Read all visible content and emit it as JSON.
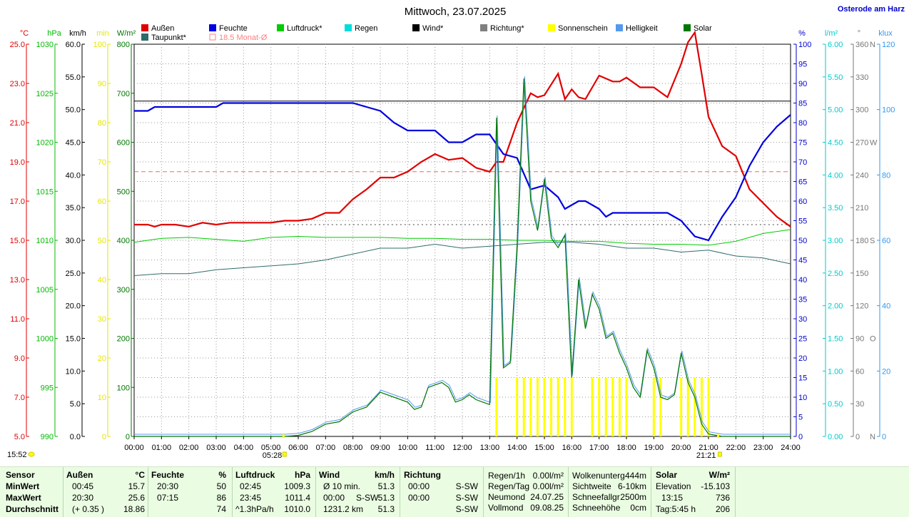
{
  "title": "Mittwoch, 23.07.2025",
  "location": "Osterode am Harz",
  "legend": [
    {
      "label": "Außen",
      "color": "#e00000"
    },
    {
      "label": "Taupunkt*",
      "color": "#2f6b6b"
    },
    {
      "label": "Feuchte",
      "color": "#0000e0"
    },
    {
      "label": "18.5 Monat-Ø",
      "color": "#ff8080"
    },
    {
      "label": "Luftdruck*",
      "color": "#00cc00"
    },
    {
      "label": "Regen",
      "color": "#00dddd"
    },
    {
      "label": "Wind*",
      "color": "#000000"
    },
    {
      "label": "Richtung*",
      "color": "#808080"
    },
    {
      "label": "Sonnenschein",
      "color": "#ffff00"
    },
    {
      "label": "Helligkeit",
      "color": "#5599ee"
    },
    {
      "label": "Solar",
      "color": "#007700"
    }
  ],
  "axes_left": [
    {
      "unit": "°C",
      "color": "#e00000",
      "ticks": [
        "25.0",
        "23.0",
        "21.0",
        "19.0",
        "17.0",
        "15.0",
        "13.0",
        "11.0",
        "9.0",
        "7.0",
        "5.0"
      ]
    },
    {
      "unit": "hPa",
      "color": "#00bb00",
      "ticks": [
        "1030",
        "1025",
        "1020",
        "1015",
        "1010",
        "1005",
        "1000",
        "995",
        "990"
      ]
    },
    {
      "unit": "km/h",
      "color": "#000000",
      "ticks": [
        "60.0",
        "55.0",
        "50.0",
        "45.0",
        "40.0",
        "35.0",
        "30.0",
        "25.0",
        "20.0",
        "15.0",
        "10.0",
        "5.0",
        "0.0"
      ]
    },
    {
      "unit": "min",
      "color": "#e6e600",
      "ticks": [
        "100",
        "90",
        "80",
        "70",
        "60",
        "50",
        "40",
        "30",
        "20",
        "10",
        "0"
      ]
    },
    {
      "unit": "W/m²",
      "color": "#007700",
      "ticks": [
        "800",
        "700",
        "600",
        "500",
        "400",
        "300",
        "200",
        "100",
        "0"
      ]
    }
  ],
  "axes_right": [
    {
      "unit": "%",
      "color": "#0000cc",
      "ticks": [
        "100",
        "95",
        "90",
        "85",
        "80",
        "75",
        "70",
        "65",
        "60",
        "55",
        "50",
        "45",
        "40",
        "35",
        "30",
        "25",
        "20",
        "15",
        "10",
        "5",
        "0"
      ]
    },
    {
      "unit": "l/m²",
      "color": "#00cccc",
      "ticks": [
        "6.00",
        "5.50",
        "5.00",
        "4.50",
        "4.00",
        "3.50",
        "3.00",
        "2.50",
        "2.00",
        "1.50",
        "1.00",
        "0.50",
        "0.00"
      ]
    },
    {
      "unit": "°",
      "color": "#777777",
      "ticks": [
        "360",
        "330",
        "300",
        "270",
        "240",
        "210",
        "180",
        "150",
        "120",
        "90",
        "60",
        "30",
        "0"
      ],
      "dirs": [
        "N",
        "",
        "",
        "W",
        "",
        "",
        "S",
        "",
        "",
        "O",
        "",
        "",
        "N"
      ]
    },
    {
      "unit": "klux",
      "color": "#3399ee",
      "ticks": [
        "120",
        "100",
        "80",
        "60",
        "40",
        "20",
        "0"
      ]
    }
  ],
  "sunrise": "05:28",
  "sunset": "21:21",
  "clock": "15:52",
  "chart_data": {
    "type": "line",
    "x_unit": "Uhrzeit",
    "x_ticks": [
      "00:00",
      "01:00",
      "02:00",
      "03:00",
      "04:00",
      "05:00",
      "06:00",
      "07:00",
      "08:00",
      "09:00",
      "10:00",
      "11:00",
      "12:00",
      "13:00",
      "14:00",
      "15:00",
      "16:00",
      "17:00",
      "18:00",
      "19:00",
      "20:00",
      "21:00",
      "22:00",
      "23:00",
      "24:00"
    ],
    "xlim": [
      0,
      24
    ],
    "monthly_mean_temp": 18.5,
    "wind_constant_kmh": 51.3,
    "series": [
      {
        "name": "Außen",
        "unit": "°C",
        "ylim": [
          5,
          25
        ],
        "x": [
          0,
          0.5,
          0.75,
          1,
          1.5,
          2,
          2.5,
          3,
          3.5,
          4,
          5,
          5.5,
          6,
          6.5,
          7,
          7.5,
          8,
          8.5,
          9,
          9.5,
          10,
          10.5,
          11,
          11.5,
          12,
          12.5,
          13,
          13.25,
          13.5,
          14,
          14.5,
          14.75,
          15,
          15.5,
          15.75,
          16,
          16.25,
          16.5,
          16.75,
          17,
          17.5,
          17.75,
          18,
          18.5,
          19,
          19.5,
          20,
          20.25,
          20.5,
          20.75,
          21,
          21.5,
          22,
          22.5,
          23,
          23.5,
          24
        ],
        "values": [
          15.8,
          15.8,
          15.7,
          15.8,
          15.8,
          15.7,
          15.9,
          15.8,
          15.9,
          15.9,
          15.9,
          16.0,
          16.0,
          16.1,
          16.4,
          16.4,
          17.1,
          17.6,
          18.2,
          18.2,
          18.5,
          19.0,
          19.4,
          19.1,
          19.2,
          18.7,
          18.5,
          19.0,
          19.0,
          21.0,
          22.5,
          22.3,
          22.4,
          23.5,
          22.2,
          22.7,
          22.3,
          22.2,
          22.8,
          23.4,
          23.1,
          23.1,
          23.3,
          22.8,
          22.8,
          22.3,
          24.0,
          25.1,
          25.6,
          23.5,
          21.3,
          19.8,
          19.3,
          17.6,
          16.9,
          16.2,
          15.7
        ]
      },
      {
        "name": "Taupunkt*",
        "unit": "°C",
        "ylim": [
          5,
          25
        ],
        "x": [
          0,
          1,
          2,
          3,
          4,
          5,
          6,
          7,
          8,
          9,
          10,
          11,
          12,
          13,
          14,
          15,
          16,
          17,
          18,
          19,
          20,
          21,
          22,
          23,
          24
        ],
        "values": [
          13.2,
          13.3,
          13.3,
          13.5,
          13.6,
          13.7,
          13.8,
          14.0,
          14.3,
          14.6,
          14.6,
          14.8,
          14.6,
          14.7,
          14.8,
          14.9,
          14.9,
          14.8,
          14.6,
          14.6,
          14.4,
          14.5,
          14.2,
          14.1,
          13.8
        ]
      },
      {
        "name": "Feuchte",
        "unit": "%",
        "ylim": [
          0,
          100
        ],
        "x": [
          0,
          0.5,
          0.75,
          1,
          1.5,
          2,
          2.5,
          3,
          3.25,
          3.5,
          4,
          5,
          6,
          6.5,
          7,
          7.25,
          7.5,
          8,
          8.5,
          9,
          9.5,
          10,
          10.5,
          11,
          11.5,
          12,
          12.5,
          13,
          13.5,
          14,
          14.5,
          15,
          15.5,
          15.75,
          16,
          16.25,
          16.5,
          16.75,
          17,
          17.25,
          17.5,
          18,
          18.5,
          19,
          19.5,
          20,
          20.5,
          21,
          21.5,
          22,
          22.5,
          23,
          23.5,
          24
        ],
        "values": [
          83,
          83,
          84,
          84,
          84,
          84,
          84,
          84,
          85,
          85,
          85,
          85,
          85,
          85,
          85,
          85,
          85,
          85,
          84,
          83,
          80,
          78,
          78,
          78,
          75,
          75,
          77,
          77,
          72,
          71,
          63,
          64,
          61,
          58,
          59,
          60,
          60,
          59,
          58,
          56,
          57,
          57,
          57,
          57,
          57,
          55,
          51,
          50,
          56,
          61,
          69,
          75,
          79,
          82
        ]
      },
      {
        "name": "Luftdruck*",
        "unit": "hPa",
        "ylim": [
          990,
          1030
        ],
        "x": [
          0,
          1,
          2,
          3,
          4,
          5,
          6,
          7,
          8,
          9,
          10,
          11,
          12,
          13,
          14,
          15,
          16,
          17,
          18,
          19,
          20,
          21,
          22,
          23,
          24
        ],
        "values": [
          1009.8,
          1010.2,
          1010.3,
          1010.1,
          1009.9,
          1010.3,
          1010.4,
          1010.3,
          1010.3,
          1010.3,
          1010.2,
          1010.2,
          1010.1,
          1010.1,
          1010.0,
          1010.0,
          1009.9,
          1009.9,
          1009.7,
          1009.6,
          1009.6,
          1009.5,
          1009.9,
          1010.7,
          1011.1
        ]
      },
      {
        "name": "Solar",
        "unit": "W/m²",
        "ylim": [
          0,
          800
        ],
        "x": [
          0,
          5.5,
          6,
          6.5,
          7,
          7.5,
          8,
          8.5,
          9,
          9.5,
          10,
          10.25,
          10.5,
          10.75,
          11,
          11.25,
          11.5,
          11.75,
          12,
          12.25,
          12.5,
          12.75,
          13,
          13.25,
          13.5,
          13.75,
          14,
          14.25,
          14.5,
          14.75,
          15,
          15.25,
          15.5,
          15.75,
          16,
          16.25,
          16.5,
          16.75,
          17,
          17.25,
          17.5,
          17.75,
          18,
          18.25,
          18.5,
          18.75,
          19,
          19.25,
          19.5,
          19.75,
          20,
          20.25,
          20.5,
          20.75,
          21,
          21.5,
          22,
          24
        ],
        "values": [
          0,
          0,
          2,
          10,
          25,
          30,
          50,
          60,
          90,
          80,
          70,
          55,
          60,
          100,
          105,
          110,
          100,
          70,
          75,
          85,
          75,
          70,
          65,
          650,
          140,
          150,
          390,
          730,
          480,
          420,
          525,
          405,
          385,
          410,
          120,
          320,
          220,
          290,
          260,
          200,
          210,
          170,
          140,
          100,
          80,
          175,
          140,
          80,
          75,
          85,
          170,
          110,
          80,
          25,
          5,
          0,
          0,
          0
        ]
      }
    ],
    "sunshine_bars_h": [
      13.25,
      14.0,
      14.25,
      14.5,
      14.75,
      15.0,
      15.25,
      15.5,
      15.75,
      16.0,
      16.25,
      16.5,
      16.75,
      17.0,
      17.25,
      17.5,
      17.75,
      18.0,
      18.25,
      18.5,
      18.75,
      19.0,
      19.25,
      19.5,
      19.75,
      20.0,
      20.25,
      20.5,
      20.75,
      21.0,
      21.25
    ],
    "sunshine_on": [
      1,
      1,
      1,
      1,
      1,
      1,
      1,
      1,
      1,
      1,
      0,
      0,
      1,
      1,
      1,
      1,
      1,
      1,
      0,
      0,
      0,
      1,
      1,
      0,
      0,
      1,
      1,
      1,
      1,
      1,
      0
    ]
  },
  "stats": {
    "sensor": {
      "h": "Sensor",
      "rows": [
        "MinWert",
        "MaxWert",
        "Durchschnitt"
      ]
    },
    "aussen": {
      "h": "Außen",
      "unit": "°C",
      "rows": [
        [
          "00:45",
          "15.7"
        ],
        [
          "20:30",
          "25.6"
        ],
        [
          "(+ 0.35 )",
          "18.86"
        ]
      ]
    },
    "feuchte": {
      "h": "Feuchte",
      "unit": "%",
      "rows": [
        [
          "20:30",
          "50"
        ],
        [
          "07:15",
          "86"
        ],
        [
          "",
          "74"
        ]
      ]
    },
    "luftdruck": {
      "h": "Luftdruck",
      "unit": "hPa",
      "rows": [
        [
          "02:45",
          "1009.3"
        ],
        [
          "23:45",
          "1011.4"
        ],
        [
          "^1.3hPa/h",
          "1010.0"
        ]
      ]
    },
    "wind": {
      "h": "Wind",
      "unit": "km/h",
      "rows": [
        [
          "Ø 10 min.",
          "",
          "51.3"
        ],
        [
          "00:00",
          "S-SW",
          "51.3"
        ],
        [
          "1231.2 km",
          "",
          "51.3"
        ]
      ]
    },
    "richtung": {
      "h": "Richtung",
      "rows": [
        [
          "00:00",
          "S-SW"
        ],
        [
          "00:00",
          "S-SW"
        ],
        [
          "",
          "S-SW"
        ]
      ]
    },
    "regen": {
      "rows": [
        [
          "Regen/1h",
          "0.00l/m²"
        ],
        [
          "Regen/Tag",
          "0.00l/m²"
        ],
        [
          "Neumond",
          "24.07.25"
        ],
        [
          "Vollmond",
          "09.08.25"
        ]
      ]
    },
    "wolken": {
      "rows": [
        [
          "Wolkenunterg",
          "444m"
        ],
        [
          "Sichtweite",
          "6-10km"
        ],
        [
          "Schneefallgr",
          "2500m"
        ],
        [
          "Schneehöhe",
          "0cm"
        ]
      ]
    },
    "solar": {
      "h": "Solar",
      "unit": "W/m²",
      "rows": [
        [
          "Elevation",
          "-15.103"
        ],
        [
          "13:15",
          "736"
        ],
        [
          "Tag:5:45 h",
          "206"
        ]
      ]
    }
  }
}
